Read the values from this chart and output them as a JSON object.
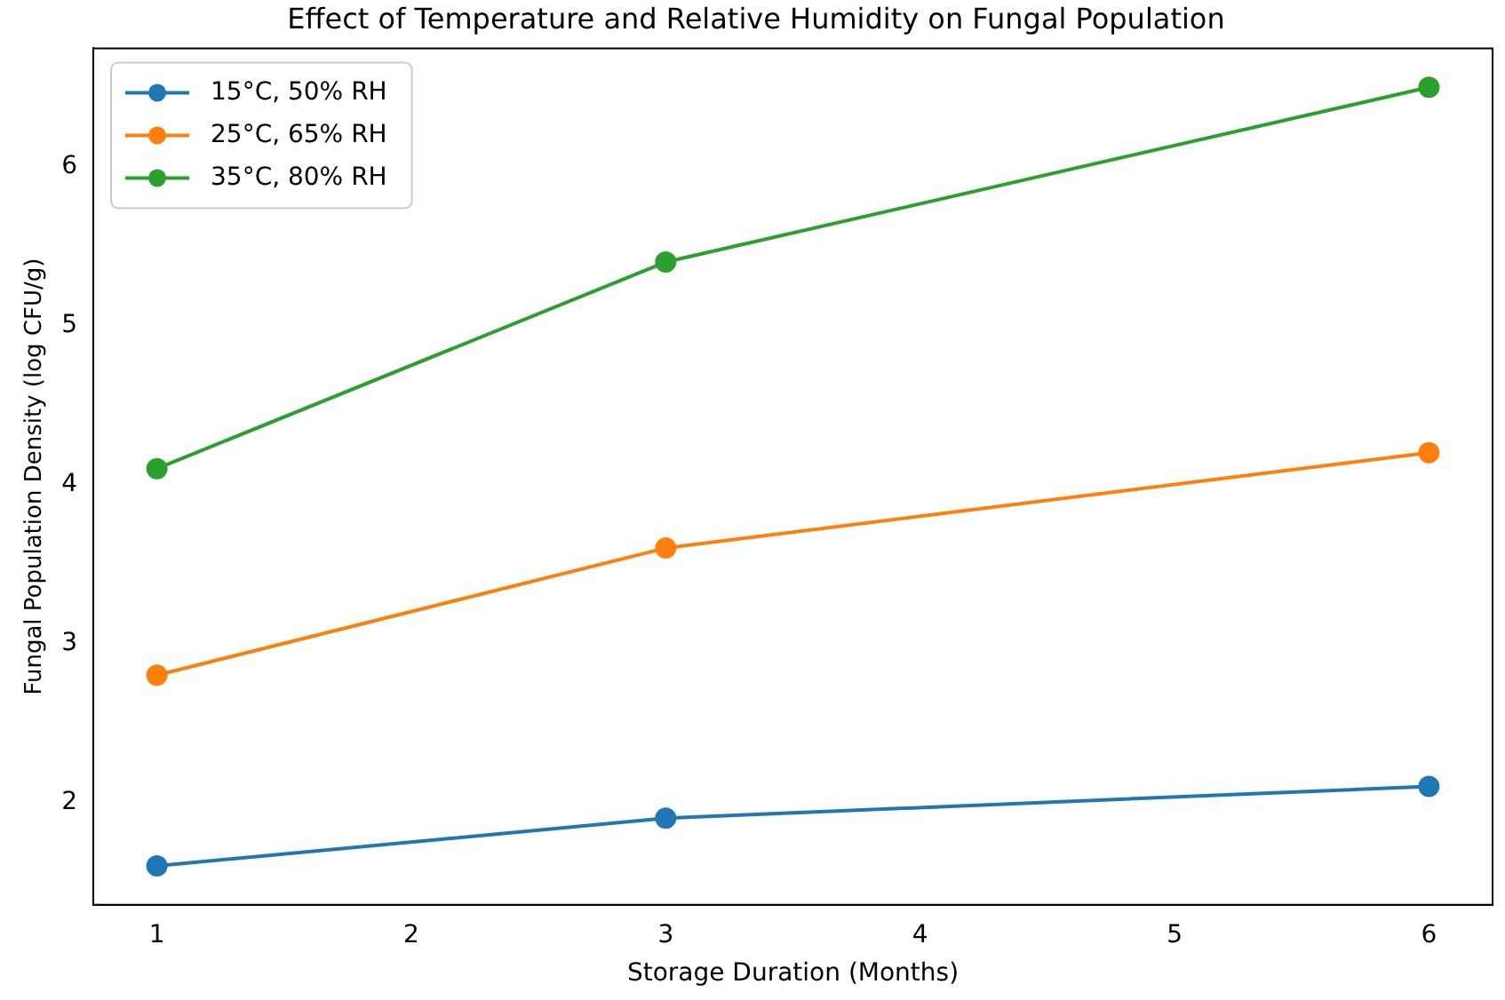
{
  "chart_data": {
    "type": "line",
    "title": "Effect of Temperature and Relative Humidity on Fungal Population",
    "xlabel": "Storage Duration (Months)",
    "ylabel": "Fungal Population Density (log CFU/g)",
    "x": [
      1,
      3,
      6
    ],
    "series": [
      {
        "name": "15°C, 50% RH",
        "color": "#1f77b4",
        "values": [
          1.6,
          1.9,
          2.1
        ]
      },
      {
        "name": "25°C, 65% RH",
        "color": "#ff7f0e",
        "values": [
          2.8,
          3.6,
          4.2
        ]
      },
      {
        "name": "35°C, 80% RH",
        "color": "#2ca02c",
        "values": [
          4.1,
          5.4,
          6.5
        ]
      }
    ],
    "xlim": [
      0.75,
      6.25
    ],
    "xticks": [
      1,
      2,
      3,
      4,
      5,
      6
    ],
    "ylim": [
      1.355,
      6.745
    ],
    "yticks": [
      2,
      3,
      4,
      5,
      6
    ],
    "grid": false,
    "legend": "top left",
    "marker": "circle",
    "line_style": "solid"
  }
}
